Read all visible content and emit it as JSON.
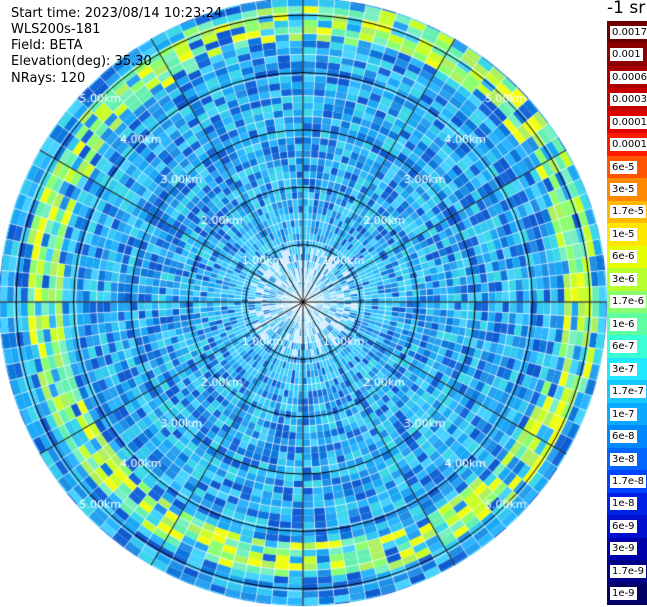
{
  "header": {
    "start_time": "Start time: 2023/08/14 10:23:24",
    "device": "WLS200s-181",
    "field": "Field: BETA",
    "elevation": "Elevation(deg): 35.30",
    "nrays": "NRays: 120"
  },
  "ppi": {
    "type": "heatmap",
    "projection": "polar",
    "nrays": 120,
    "range_rings_km": [
      1,
      2,
      3,
      4,
      5
    ],
    "ring_label_text": [
      "1.00km",
      "2.00km",
      "3.00km",
      "4.00km",
      "5.00km"
    ],
    "max_range_km": 5.3,
    "aerosol_band_km": [
      4.4,
      5.0
    ],
    "radial_lines": 12
  },
  "colorbar": {
    "unit": "-1 sr",
    "labels": [
      "0.0017",
      "0.001",
      "0.0006",
      "0.0003",
      "0.00017",
      "0.0001",
      "6e-5",
      "3e-5",
      "1.7e-5",
      "1e-5",
      "6e-6",
      "3e-6",
      "1.7e-6",
      "1e-6",
      "6e-7",
      "3e-7",
      "1.7e-7",
      "1e-7",
      "6e-8",
      "3e-8",
      "1.7e-8",
      "1e-8",
      "6e-9",
      "3e-9",
      "1.7e-9",
      "1e-9"
    ],
    "colors": [
      "#6e0000",
      "#8b0000",
      "#a80000",
      "#c40000",
      "#e00000",
      "#ff1a00",
      "#ff5500",
      "#ff8800",
      "#ffb800",
      "#ffe600",
      "#e6ff00",
      "#b8ff2e",
      "#88ff6e",
      "#5effa0",
      "#38ffd6",
      "#20e8ff",
      "#15c8ff",
      "#0aa8ff",
      "#0088ff",
      "#0066ff",
      "#0044ff",
      "#0022e6",
      "#0010cc",
      "#0000aa",
      "#000088",
      "#000066"
    ]
  }
}
